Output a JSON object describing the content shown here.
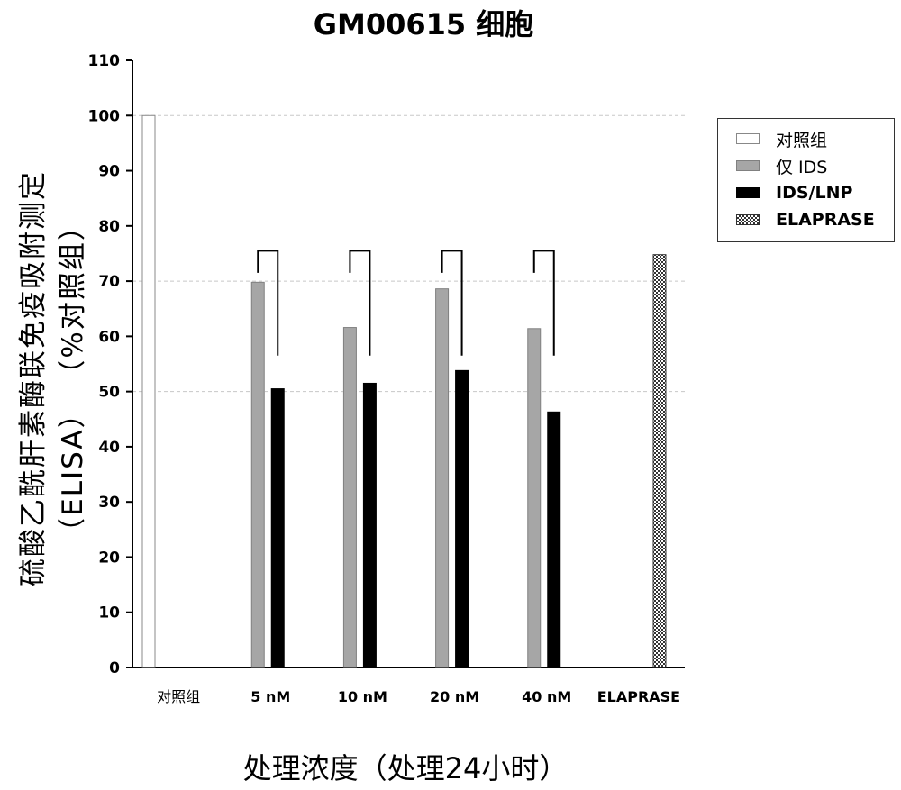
{
  "chart_data": {
    "type": "bar",
    "title": "GM00615 细胞",
    "xlabel": "处理浓度（处理24小时）",
    "ylabel_line1": "硫酸乙酰肝素酶联免疫吸附测定",
    "ylabel_line2": "（ELISA）  （%对照组）",
    "ylim": [
      0,
      110
    ],
    "yticks": [
      0,
      10,
      20,
      30,
      40,
      50,
      60,
      70,
      80,
      90,
      100,
      110
    ],
    "gridlines_y": [
      50,
      70,
      100
    ],
    "categories": [
      "对照组",
      "5 nM",
      "10 nM",
      "20 nM",
      "40 nM",
      "ELAPRASE"
    ],
    "series": [
      {
        "name": "对照组",
        "fill": "#ffffff",
        "stroke": "#888888",
        "pattern": "none",
        "values": [
          100,
          null,
          null,
          null,
          null,
          null
        ]
      },
      {
        "name": "仅 IDS",
        "fill": "#a6a6a6",
        "stroke": "#808080",
        "pattern": "none",
        "values": [
          null,
          69.8,
          61.6,
          68.6,
          61.4,
          null
        ]
      },
      {
        "name": "IDS/LNP",
        "fill": "#000000",
        "stroke": "#000000",
        "pattern": "none",
        "values": [
          null,
          50.5,
          51.5,
          53.8,
          46.3,
          null
        ]
      },
      {
        "name": "ELAPRASE",
        "fill": "#555555",
        "stroke": "#333333",
        "pattern": "checker",
        "values": [
          null,
          null,
          null,
          null,
          null,
          74.8
        ]
      }
    ],
    "legend_position": "top-right",
    "significance_brackets": [
      1,
      2,
      3,
      4
    ],
    "grid": "dashed horizontal"
  }
}
